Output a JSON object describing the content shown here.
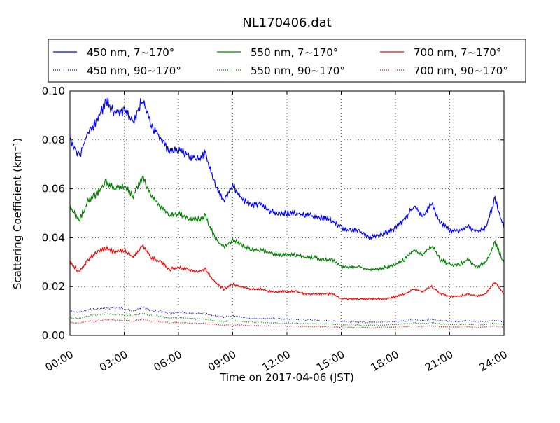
{
  "chart_data": {
    "type": "line",
    "title": "NL170406.dat",
    "xlabel": "Time on 2017-04-06 (JST)",
    "ylabel": "Scattering Coefficient (km⁻¹)",
    "xlim": [
      0,
      24
    ],
    "ylim": [
      0,
      0.1
    ],
    "x_ticks": [
      "00:00",
      "03:00",
      "06:00",
      "09:00",
      "12:00",
      "15:00",
      "18:00",
      "21:00",
      "24:00"
    ],
    "y_ticks": [
      "0.00",
      "0.02",
      "0.04",
      "0.06",
      "0.08",
      "0.10"
    ],
    "grid": true,
    "legend_position": "top",
    "x": [
      0.0,
      0.5,
      1.0,
      1.5,
      2.0,
      2.5,
      3.0,
      3.5,
      4.0,
      4.5,
      5.0,
      5.5,
      6.0,
      6.5,
      7.0,
      7.5,
      8.0,
      8.5,
      9.0,
      9.5,
      10.0,
      10.5,
      11.0,
      11.5,
      12.0,
      12.5,
      13.0,
      13.5,
      14.0,
      14.5,
      15.0,
      15.5,
      16.0,
      16.5,
      17.0,
      17.5,
      18.0,
      18.5,
      19.0,
      19.5,
      20.0,
      20.5,
      21.0,
      21.5,
      22.0,
      22.5,
      23.0,
      23.5,
      24.0
    ],
    "series": [
      {
        "name": "450 nm, 7∼170°",
        "color": "#0000ff",
        "style": "solid",
        "values": [
          0.081,
          0.073,
          0.083,
          0.088,
          0.096,
          0.091,
          0.092,
          0.087,
          0.097,
          0.086,
          0.081,
          0.075,
          0.076,
          0.074,
          0.072,
          0.074,
          0.062,
          0.055,
          0.061,
          0.056,
          0.053,
          0.054,
          0.051,
          0.05,
          0.05,
          0.05,
          0.049,
          0.049,
          0.048,
          0.047,
          0.044,
          0.043,
          0.043,
          0.04,
          0.041,
          0.042,
          0.044,
          0.047,
          0.053,
          0.049,
          0.054,
          0.046,
          0.043,
          0.043,
          0.045,
          0.042,
          0.044,
          0.056,
          0.044
        ]
      },
      {
        "name": "450 nm, 90∼170°",
        "color": "#0000ff",
        "style": "dotted",
        "values": [
          0.01,
          0.0095,
          0.0105,
          0.011,
          0.011,
          0.0115,
          0.011,
          0.01,
          0.0115,
          0.01,
          0.01,
          0.009,
          0.0095,
          0.009,
          0.009,
          0.009,
          0.008,
          0.0075,
          0.008,
          0.0075,
          0.007,
          0.007,
          0.007,
          0.0068,
          0.0066,
          0.0066,
          0.0064,
          0.0062,
          0.006,
          0.006,
          0.0058,
          0.0056,
          0.0055,
          0.0053,
          0.0055,
          0.0055,
          0.0056,
          0.006,
          0.0065,
          0.006,
          0.0066,
          0.006,
          0.0058,
          0.0056,
          0.006,
          0.0055,
          0.0058,
          0.0062,
          0.0055
        ]
      },
      {
        "name": "550 nm, 7∼170°",
        "color": "#008000",
        "style": "solid",
        "values": [
          0.053,
          0.047,
          0.055,
          0.058,
          0.063,
          0.06,
          0.061,
          0.057,
          0.065,
          0.057,
          0.053,
          0.049,
          0.05,
          0.048,
          0.047,
          0.049,
          0.04,
          0.036,
          0.039,
          0.037,
          0.035,
          0.035,
          0.034,
          0.033,
          0.033,
          0.033,
          0.032,
          0.032,
          0.031,
          0.031,
          0.028,
          0.028,
          0.028,
          0.027,
          0.027,
          0.028,
          0.029,
          0.031,
          0.035,
          0.033,
          0.037,
          0.031,
          0.029,
          0.029,
          0.031,
          0.028,
          0.03,
          0.038,
          0.03
        ]
      },
      {
        "name": "550 nm, 90∼170°",
        "color": "#008000",
        "style": "dotted",
        "values": [
          0.0075,
          0.007,
          0.008,
          0.0085,
          0.009,
          0.0085,
          0.0085,
          0.008,
          0.009,
          0.008,
          0.0078,
          0.0072,
          0.0072,
          0.007,
          0.0068,
          0.0068,
          0.006,
          0.0056,
          0.006,
          0.0056,
          0.0054,
          0.0054,
          0.0052,
          0.0051,
          0.005,
          0.005,
          0.0049,
          0.0048,
          0.0047,
          0.0046,
          0.0044,
          0.0043,
          0.0043,
          0.0042,
          0.0042,
          0.0043,
          0.0044,
          0.0047,
          0.0051,
          0.0048,
          0.0052,
          0.0047,
          0.0045,
          0.0044,
          0.0047,
          0.0043,
          0.0045,
          0.005,
          0.0044
        ]
      },
      {
        "name": "700 nm, 7∼170°",
        "color": "#ff0000",
        "style": "solid",
        "values": [
          0.03,
          0.026,
          0.031,
          0.034,
          0.036,
          0.034,
          0.035,
          0.032,
          0.037,
          0.032,
          0.03,
          0.027,
          0.028,
          0.027,
          0.026,
          0.027,
          0.022,
          0.019,
          0.021,
          0.02,
          0.019,
          0.019,
          0.018,
          0.018,
          0.018,
          0.018,
          0.017,
          0.017,
          0.017,
          0.017,
          0.015,
          0.015,
          0.015,
          0.015,
          0.015,
          0.015,
          0.016,
          0.017,
          0.019,
          0.018,
          0.02,
          0.017,
          0.016,
          0.016,
          0.017,
          0.016,
          0.017,
          0.022,
          0.017
        ]
      },
      {
        "name": "700 nm, 90∼170°",
        "color": "#ff0000",
        "style": "dotted",
        "values": [
          0.0055,
          0.005,
          0.0058,
          0.006,
          0.0065,
          0.0062,
          0.0062,
          0.0058,
          0.0066,
          0.0058,
          0.0056,
          0.0052,
          0.0053,
          0.0051,
          0.005,
          0.005,
          0.0045,
          0.0042,
          0.0044,
          0.0042,
          0.004,
          0.004,
          0.0039,
          0.0038,
          0.0038,
          0.0038,
          0.0037,
          0.0036,
          0.0036,
          0.0035,
          0.0034,
          0.0033,
          0.0033,
          0.0032,
          0.0032,
          0.0033,
          0.0034,
          0.0036,
          0.0039,
          0.0037,
          0.004,
          0.0036,
          0.0035,
          0.0034,
          0.0036,
          0.0033,
          0.0035,
          0.0038,
          0.0034
        ]
      }
    ]
  }
}
